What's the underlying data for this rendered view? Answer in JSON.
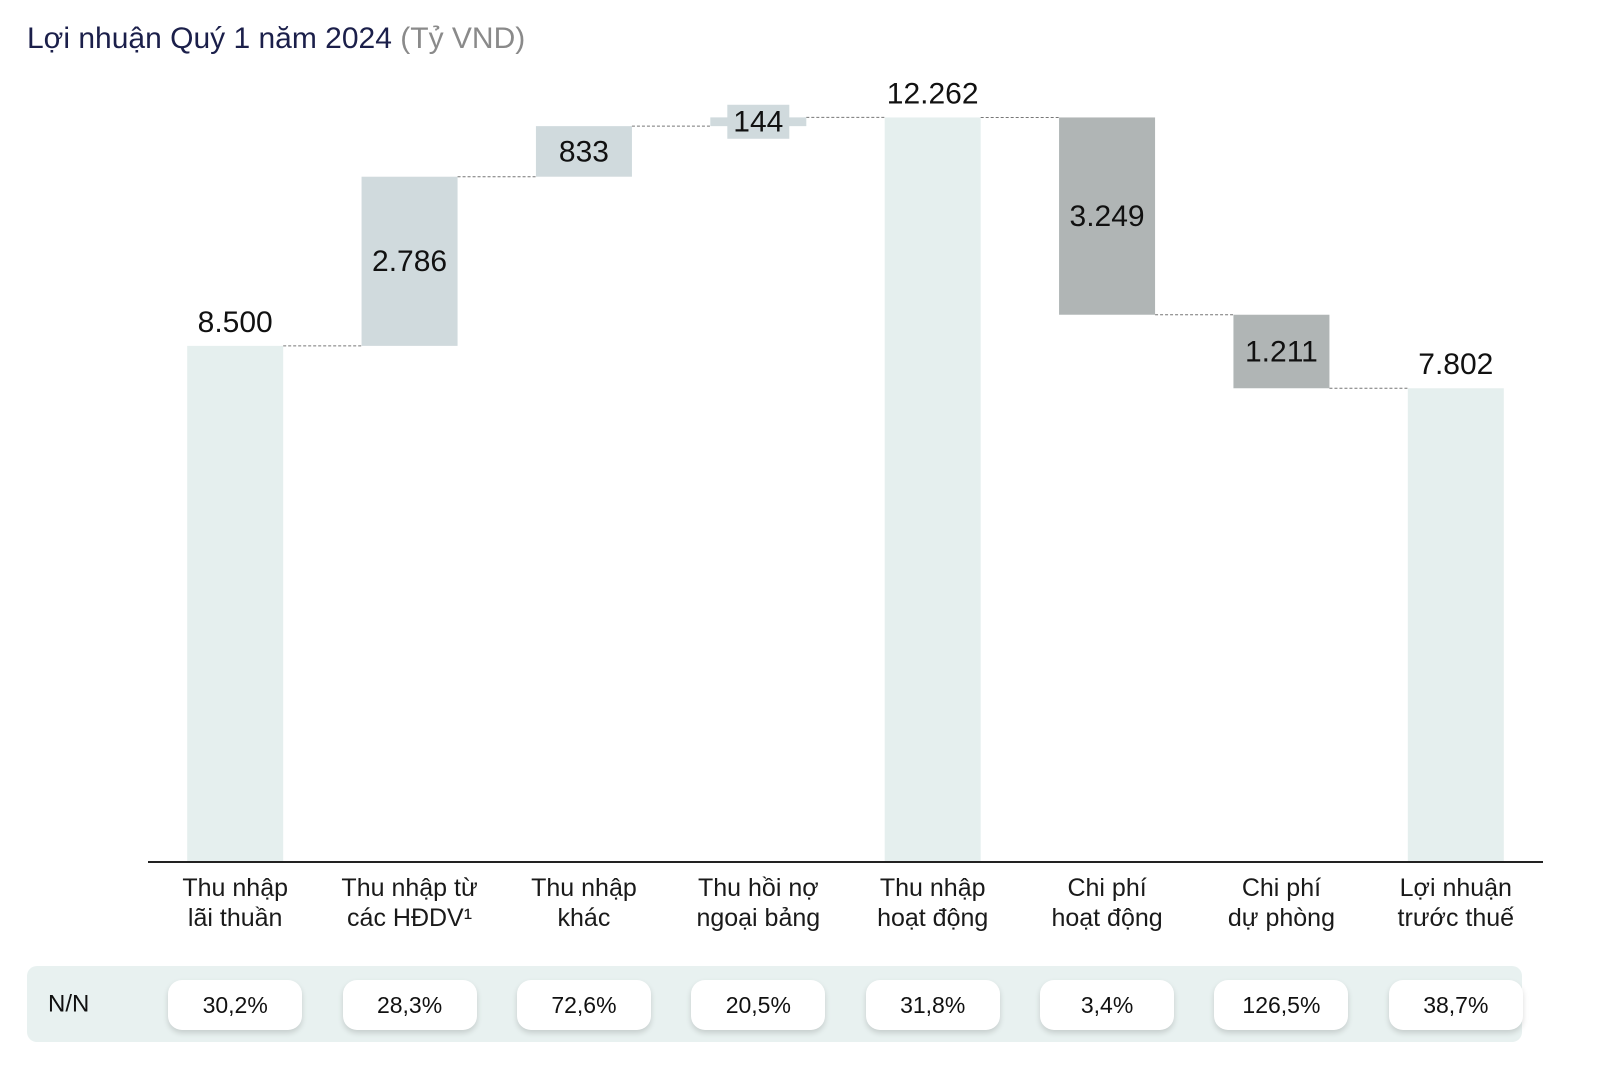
{
  "chart_data": {
    "type": "waterfall",
    "title": "Lợi nhuận Quý 1 năm 2024",
    "unit": "(Tỷ VND)",
    "categories": [
      "Thu nhập\nlãi thuần",
      "Thu nhập từ\ncác HĐDV¹",
      "Thu nhập\nkhác",
      "Thu hồi nợ\nngoại bảng",
      "Thu nhập\nhoạt động",
      "Chi phí\nhoạt động",
      "Chi phí\ndự phòng",
      "Lợi nhuận\ntrước thuế"
    ],
    "values": [
      8500,
      2786,
      833,
      144,
      12262,
      -3249,
      -1211,
      7802
    ],
    "value_labels": [
      "8.500",
      "2.786",
      "833",
      "144",
      "12.262",
      "3.249",
      "1.211",
      "7.802"
    ],
    "measure": [
      "absolute",
      "relative",
      "relative",
      "relative",
      "absolute",
      "relative",
      "relative",
      "absolute"
    ],
    "colors": [
      "#e5efee",
      "#d0dadd",
      "#d0dadd",
      "#d0dadd",
      "#e5efee",
      "#b0b5b5",
      "#b0b5b5",
      "#e5efee"
    ],
    "ylim": [
      0,
      12500
    ],
    "yoy_label": "N/N",
    "yoy": [
      "30,2%",
      "28,3%",
      "72,6%",
      "20,5%",
      "31,8%",
      "3,4%",
      "126,5%",
      "38,7%"
    ]
  }
}
